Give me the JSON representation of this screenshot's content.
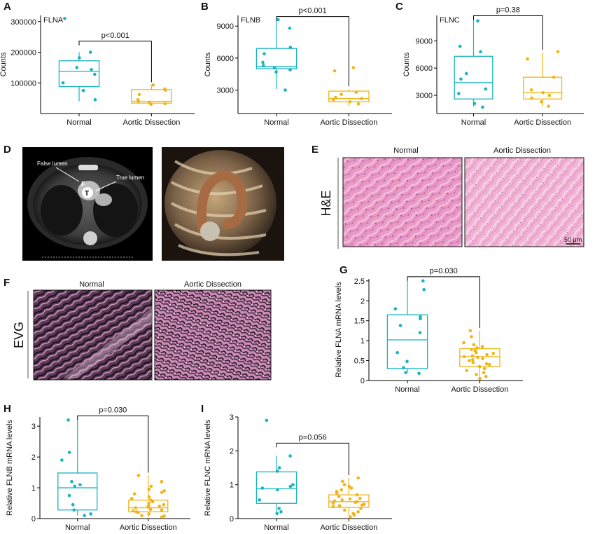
{
  "colors": {
    "normal": "#17b3c1",
    "dissection": "#f0b416",
    "axis": "#000000"
  },
  "panels": {
    "D": {
      "label": "D",
      "false_lumen": "False lumen",
      "true_lumen": "True lumen",
      "F": "F",
      "T": "T"
    },
    "E": {
      "label": "E",
      "normal": "Normal",
      "dissection": "Aortic Dissection",
      "stain": "H&E",
      "scale": "50 μm"
    },
    "F": {
      "label": "F",
      "normal": "Normal",
      "dissection": "Aortic Dissection",
      "stain": "EVG"
    }
  },
  "chart_data": [
    {
      "id": "A",
      "type": "box",
      "label": "A",
      "title": "FLNA",
      "ylabel": "Counts",
      "ylim": [
        0,
        320000
      ],
      "yticks": [
        100000,
        200000,
        300000
      ],
      "categories": [
        "Normal",
        "Aortic Dissection"
      ],
      "pvalue": "p<0.001",
      "boxes": [
        {
          "q1": 88000,
          "median": 138000,
          "q3": 172000,
          "whisker_low": 40000,
          "whisker_high": 200000,
          "points": [
            310000,
            200000,
            182000,
            150000,
            143000,
            128000,
            100000,
            75000,
            45000
          ]
        },
        {
          "q1": 34000,
          "median": 40000,
          "q3": 78000,
          "whisker_low": 30000,
          "whisker_high": 93000,
          "points": [
            93000,
            80000,
            76000,
            62000,
            45000,
            40000,
            35000,
            32000,
            30000
          ]
        }
      ]
    },
    {
      "id": "B",
      "type": "box",
      "label": "B",
      "title": "FLNB",
      "ylabel": "Counts",
      "ylim": [
        800,
        10000
      ],
      "yticks": [
        3000,
        6000,
        9000
      ],
      "categories": [
        "Normal",
        "Aortic Dissection"
      ],
      "pvalue": "p<0.001",
      "boxes": [
        {
          "q1": 5000,
          "median": 5200,
          "q3": 6900,
          "whisker_low": 3100,
          "whisker_high": 9500,
          "points": [
            9600,
            8800,
            7000,
            6400,
            5600,
            5300,
            5100,
            4900,
            4700,
            3000
          ]
        },
        {
          "q1": 1900,
          "median": 2200,
          "q3": 2900,
          "whisker_low": 1500,
          "whisker_high": 3100,
          "points": [
            5100,
            4800,
            2800,
            2600,
            2300,
            2200,
            2100,
            1900,
            1700
          ]
        }
      ]
    },
    {
      "id": "C",
      "type": "box",
      "label": "C",
      "title": "FLNC",
      "ylabel": "Counts",
      "ylim": [
        1000,
        11800
      ],
      "yticks": [
        3000,
        6000,
        9000
      ],
      "categories": [
        "Normal",
        "Aortic Dissection"
      ],
      "pvalue": "p=0.38",
      "boxes": [
        {
          "q1": 2600,
          "median": 4400,
          "q3": 7300,
          "whisker_low": 1800,
          "whisker_high": 11300,
          "points": [
            11200,
            8400,
            7800,
            5400,
            4800,
            3700,
            3200,
            2100,
            1700
          ]
        },
        {
          "q1": 2600,
          "median": 3300,
          "q3": 5000,
          "whisker_low": 1800,
          "whisker_high": 7700,
          "points": [
            7800,
            7000,
            5000,
            3600,
            3300,
            3000,
            2700,
            2300,
            1800
          ]
        }
      ]
    },
    {
      "id": "G",
      "type": "box",
      "label": "G",
      "title": "",
      "ylabel": "Relative FLNA mRNA levels",
      "ylim": [
        0,
        2.55
      ],
      "yticks": [
        0.0,
        0.5,
        1.0,
        1.5,
        2.0,
        2.5
      ],
      "categories": [
        "Normal",
        "Aortic Dissection"
      ],
      "pvalue": "p=0.030",
      "boxes": [
        {
          "q1": 0.3,
          "median": 1.02,
          "q3": 1.65,
          "whisker_low": 0.2,
          "whisker_high": 2.5,
          "points": [
            2.5,
            2.28,
            1.8,
            1.6,
            1.55,
            1.38,
            1.2,
            0.7,
            0.48,
            0.32,
            0.2,
            0.18
          ]
        },
        {
          "q1": 0.35,
          "median": 0.6,
          "q3": 0.8,
          "whisker_low": 0.05,
          "whisker_high": 1.25,
          "points": [
            1.25,
            1.1,
            0.95,
            0.9,
            0.85,
            0.82,
            0.78,
            0.75,
            0.7,
            0.68,
            0.65,
            0.62,
            0.6,
            0.58,
            0.55,
            0.52,
            0.5,
            0.45,
            0.42,
            0.4,
            0.35,
            0.3,
            0.25,
            0.2,
            0.15,
            0.1,
            0.05
          ]
        }
      ]
    },
    {
      "id": "H",
      "type": "box",
      "label": "H",
      "title": "",
      "ylabel": "Relative FLNB mRNA levels",
      "ylim": [
        0,
        3.3
      ],
      "yticks": [
        0,
        1,
        2,
        3
      ],
      "categories": [
        "Normal",
        "Aortic Dissection"
      ],
      "pvalue": "p=0.030",
      "boxes": [
        {
          "q1": 0.28,
          "median": 1.0,
          "q3": 1.48,
          "whisker_low": 0.1,
          "whisker_high": 3.2,
          "points": [
            3.2,
            2.15,
            1.9,
            1.2,
            1.1,
            1.05,
            0.75,
            0.45,
            0.28,
            0.15,
            0.1
          ]
        },
        {
          "q1": 0.22,
          "median": 0.35,
          "q3": 0.6,
          "whisker_low": 0.05,
          "whisker_high": 1.4,
          "points": [
            1.4,
            1.2,
            1.05,
            0.95,
            0.9,
            0.85,
            0.8,
            0.7,
            0.65,
            0.6,
            0.55,
            0.5,
            0.45,
            0.42,
            0.4,
            0.38,
            0.35,
            0.32,
            0.3,
            0.28,
            0.25,
            0.22,
            0.2,
            0.15,
            0.1,
            0.08,
            0.05
          ]
        }
      ]
    },
    {
      "id": "I",
      "type": "box",
      "label": "I",
      "title": "",
      "ylabel": "Relative FLNC mRNA levels",
      "ylim": [
        0,
        3.0
      ],
      "yticks": [
        0,
        1,
        2,
        3
      ],
      "categories": [
        "Normal",
        "Aortic Dissection"
      ],
      "pvalue": "p=0.056",
      "boxes": [
        {
          "q1": 0.45,
          "median": 0.88,
          "q3": 1.38,
          "whisker_low": 0.15,
          "whisker_high": 1.85,
          "points": [
            2.9,
            1.85,
            1.5,
            1.4,
            1.0,
            0.95,
            0.9,
            0.85,
            0.55,
            0.3,
            0.2,
            0.15
          ]
        },
        {
          "q1": 0.33,
          "median": 0.5,
          "q3": 0.7,
          "whisker_low": 0.05,
          "whisker_high": 1.2,
          "points": [
            1.2,
            1.1,
            1.0,
            0.95,
            0.9,
            0.85,
            0.8,
            0.75,
            0.7,
            0.65,
            0.6,
            0.58,
            0.55,
            0.52,
            0.5,
            0.48,
            0.45,
            0.42,
            0.4,
            0.38,
            0.35,
            0.3,
            0.25,
            0.2,
            0.15,
            0.1,
            0.05
          ]
        }
      ]
    }
  ]
}
